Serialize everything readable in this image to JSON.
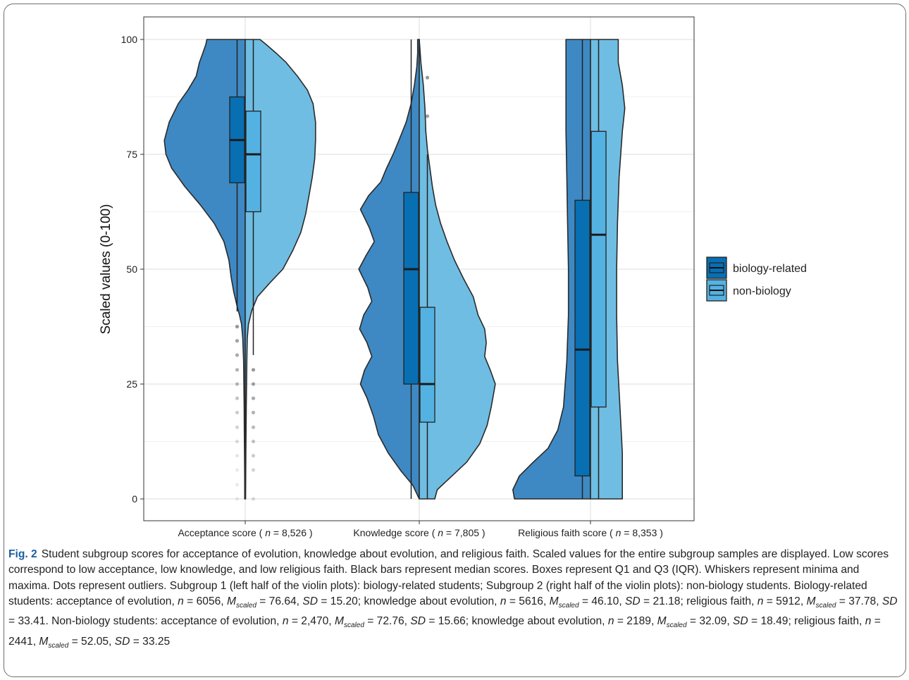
{
  "chart_data": {
    "type": "violin",
    "ylabel": "Scaled values (0-100)",
    "ylim": [
      0,
      100
    ],
    "yticks": [
      0,
      25,
      50,
      75,
      100
    ],
    "grid": true,
    "legend_position": "right",
    "colors": {
      "biology-related": "#3e89c3",
      "non-biology": "#6fbde3",
      "box_biology": "#086fb3",
      "box_non": "#54b2e2",
      "outline": "#2a2a2a",
      "grid": "#e6e6e6"
    },
    "categories": [
      {
        "label": "Acceptance score ( n = 8,526 )",
        "label_pre": "Acceptance score ( ",
        "label_n": "n",
        "label_post": " = 8,526 )"
      },
      {
        "label": "Knowledge score ( n = 7,805 )",
        "label_pre": "Knowledge score ( ",
        "label_n": "n",
        "label_post": " = 7,805 )"
      },
      {
        "label": "Religious faith score ( n = 8,353 )",
        "label_pre": "Religious faith score ( ",
        "label_n": "n",
        "label_post": " = 8,353 )"
      }
    ],
    "series": [
      {
        "name": "biology-related",
        "groups": [
          {
            "box": {
              "min": 40.8,
              "q1": 68.8,
              "median": 78.1,
              "q3": 87.5,
              "max": 100
            },
            "outliers": [
              37.5,
              34.4,
              31.3,
              28.1,
              25,
              21.9,
              18.8,
              15.6,
              12.5,
              9.4,
              6.3,
              3.1,
              0
            ],
            "density": [
              [
                0,
                0.006
              ],
              [
                3,
                0.006
              ],
              [
                6,
                0.007
              ],
              [
                10,
                0.009
              ],
              [
                15,
                0.011
              ],
              [
                20,
                0.013
              ],
              [
                25,
                0.016
              ],
              [
                30,
                0.02
              ],
              [
                35,
                0.03
              ],
              [
                38,
                0.045
              ],
              [
                40,
                0.07
              ],
              [
                42,
                0.1
              ],
              [
                45,
                0.14
              ],
              [
                48,
                0.17
              ],
              [
                52,
                0.2
              ],
              [
                56,
                0.26
              ],
              [
                60,
                0.38
              ],
              [
                64,
                0.55
              ],
              [
                68,
                0.74
              ],
              [
                72,
                0.9
              ],
              [
                75,
                0.97
              ],
              [
                78,
                0.99
              ],
              [
                82,
                0.93
              ],
              [
                86,
                0.82
              ],
              [
                89,
                0.7
              ],
              [
                92,
                0.6
              ],
              [
                95,
                0.56
              ],
              [
                97,
                0.52
              ],
              [
                99,
                0.48
              ],
              [
                100,
                0.47
              ]
            ]
          },
          {
            "box": {
              "min": 0,
              "q1": 25,
              "median": 50,
              "q3": 66.7,
              "max": 100
            },
            "outliers": [],
            "density": [
              [
                0,
                0.0
              ],
              [
                3,
                0.08
              ],
              [
                6,
                0.22
              ],
              [
                10,
                0.38
              ],
              [
                14,
                0.5
              ],
              [
                18,
                0.56
              ],
              [
                22,
                0.64
              ],
              [
                25,
                0.72
              ],
              [
                28,
                0.67
              ],
              [
                31,
                0.58
              ],
              [
                34,
                0.64
              ],
              [
                37,
                0.73
              ],
              [
                40,
                0.68
              ],
              [
                43,
                0.58
              ],
              [
                46,
                0.63
              ],
              [
                50,
                0.74
              ],
              [
                53,
                0.65
              ],
              [
                56,
                0.55
              ],
              [
                59,
                0.61
              ],
              [
                63,
                0.72
              ],
              [
                66,
                0.62
              ],
              [
                69,
                0.47
              ],
              [
                72,
                0.4
              ],
              [
                75,
                0.32
              ],
              [
                78,
                0.25
              ],
              [
                82,
                0.16
              ],
              [
                86,
                0.1
              ],
              [
                90,
                0.06
              ],
              [
                94,
                0.03
              ],
              [
                97,
                0.02
              ],
              [
                100,
                0.02
              ]
            ]
          },
          {
            "box": {
              "min": 0,
              "q1": 5,
              "median": 32.5,
              "q3": 65,
              "max": 100
            },
            "outliers": [],
            "density": [
              [
                0,
                0.93
              ],
              [
                2,
                0.95
              ],
              [
                5,
                0.87
              ],
              [
                8,
                0.7
              ],
              [
                11,
                0.52
              ],
              [
                15,
                0.4
              ],
              [
                20,
                0.33
              ],
              [
                30,
                0.29
              ],
              [
                40,
                0.27
              ],
              [
                50,
                0.27
              ],
              [
                60,
                0.28
              ],
              [
                70,
                0.29
              ],
              [
                80,
                0.3
              ],
              [
                90,
                0.3
              ],
              [
                96,
                0.3
              ],
              [
                100,
                0.3
              ]
            ]
          }
        ]
      },
      {
        "name": "non-biology",
        "groups": [
          {
            "box": {
              "min": 31.3,
              "q1": 62.5,
              "median": 75,
              "q3": 84.4,
              "max": 100
            },
            "outliers": [
              28.1,
              25,
              21.9,
              18.8,
              15.6,
              12.5,
              9.4,
              6.3,
              0
            ],
            "density": [
              [
                0,
                0.004
              ],
              [
                5,
                0.006
              ],
              [
                10,
                0.008
              ],
              [
                15,
                0.01
              ],
              [
                20,
                0.013
              ],
              [
                25,
                0.016
              ],
              [
                30,
                0.02
              ],
              [
                35,
                0.025
              ],
              [
                38,
                0.04
              ],
              [
                41,
                0.08
              ],
              [
                44,
                0.15
              ],
              [
                47,
                0.3
              ],
              [
                50,
                0.46
              ],
              [
                54,
                0.58
              ],
              [
                58,
                0.68
              ],
              [
                62,
                0.74
              ],
              [
                66,
                0.78
              ],
              [
                70,
                0.82
              ],
              [
                74,
                0.85
              ],
              [
                78,
                0.86
              ],
              [
                82,
                0.86
              ],
              [
                86,
                0.83
              ],
              [
                89,
                0.76
              ],
              [
                92,
                0.64
              ],
              [
                95,
                0.5
              ],
              [
                97,
                0.38
              ],
              [
                99,
                0.25
              ],
              [
                100,
                0.18
              ]
            ]
          },
          {
            "box": {
              "min": 0,
              "q1": 16.7,
              "median": 25,
              "q3": 41.7,
              "max": 75
            },
            "outliers": [
              91.7,
              83.3
            ],
            "density": [
              [
                0,
                0.19
              ],
              [
                2,
                0.22
              ],
              [
                5,
                0.4
              ],
              [
                8,
                0.58
              ],
              [
                12,
                0.74
              ],
              [
                16,
                0.83
              ],
              [
                20,
                0.88
              ],
              [
                23,
                0.91
              ],
              [
                25,
                0.93
              ],
              [
                28,
                0.87
              ],
              [
                31,
                0.8
              ],
              [
                34,
                0.82
              ],
              [
                37,
                0.8
              ],
              [
                40,
                0.72
              ],
              [
                44,
                0.66
              ],
              [
                48,
                0.54
              ],
              [
                52,
                0.43
              ],
              [
                56,
                0.34
              ],
              [
                60,
                0.26
              ],
              [
                64,
                0.2
              ],
              [
                68,
                0.16
              ],
              [
                72,
                0.13
              ],
              [
                76,
                0.1
              ],
              [
                80,
                0.08
              ],
              [
                85,
                0.07
              ],
              [
                90,
                0.05
              ],
              [
                95,
                0.02
              ],
              [
                100,
                0.0
              ]
            ]
          },
          {
            "box": {
              "min": 0,
              "q1": 20,
              "median": 57.5,
              "q3": 80,
              "max": 100
            },
            "outliers": [],
            "density": [
              [
                0,
                0.39
              ],
              [
                10,
                0.39
              ],
              [
                20,
                0.36
              ],
              [
                30,
                0.33
              ],
              [
                40,
                0.32
              ],
              [
                50,
                0.32
              ],
              [
                60,
                0.33
              ],
              [
                70,
                0.35
              ],
              [
                80,
                0.39
              ],
              [
                85,
                0.42
              ],
              [
                90,
                0.39
              ],
              [
                95,
                0.34
              ],
              [
                98,
                0.34
              ],
              [
                100,
                0.34
              ]
            ]
          }
        ]
      }
    ]
  },
  "caption": {
    "label": "Fig. 2",
    "text": "Student subgroup scores for acceptance of evolution, knowledge about evolution, and religious faith. Scaled values for the entire subgroup samples are displayed. Low scores correspond to low acceptance, low knowledge, and low religious faith. Black bars represent median scores. Boxes represent Q1 and Q3 (IQR). Whiskers represent minima and maxima. Dots represent outliers. Subgroup 1 (left half of the violin plots): biology-related students; Subgroup 2 (right half of the violin plots): non-biology students. Biology-related students: acceptance of evolution, n = 6056, M",
    "bio_stats_1": "scaled",
    "segments": [
      {
        "t": "Student subgroup scores for acceptance of evolution, knowledge about evolution, and religious faith. Scaled values for the entire subgroup samples are displayed. Low scores correspond to low acceptance, low knowledge, and low religious faith. Black bars represent median scores. Boxes represent Q1 and Q3 (IQR). Whiskers represent minima and maxima. Dots represent outliers. Subgroup 1 (left half of the violin plots): biology-related students; Subgroup 2 (right half of the violin plots): non-biology students. Biology-related students: acceptance of evolution, ",
        "s": "n"
      },
      {
        "t": "n",
        "s": "i"
      },
      {
        "t": " = 6056, ",
        "s": "n"
      },
      {
        "t": "M",
        "s": "i"
      },
      {
        "t": "scaled",
        "s": "sub"
      },
      {
        "t": " = 76.64, ",
        "s": "n"
      },
      {
        "t": "SD",
        "s": "i"
      },
      {
        "t": " = 15.20; knowledge about evolution, ",
        "s": "n"
      },
      {
        "t": "n",
        "s": "i"
      },
      {
        "t": " = 5616, ",
        "s": "n"
      },
      {
        "t": "M",
        "s": "i"
      },
      {
        "t": "scaled",
        "s": "sub"
      },
      {
        "t": " = 46.10, ",
        "s": "n"
      },
      {
        "t": "SD",
        "s": "i"
      },
      {
        "t": " = 21.18; religious faith, ",
        "s": "n"
      },
      {
        "t": "n",
        "s": "i"
      },
      {
        "t": " = 5912, ",
        "s": "n"
      },
      {
        "t": "M",
        "s": "i"
      },
      {
        "t": "scaled",
        "s": "sub"
      },
      {
        "t": " = 37.78, ",
        "s": "n"
      },
      {
        "t": "SD",
        "s": "i"
      },
      {
        "t": " = 33.41. Non-biology students: acceptance of evolution, ",
        "s": "n"
      },
      {
        "t": "n",
        "s": "i"
      },
      {
        "t": " = 2,470, ",
        "s": "n"
      },
      {
        "t": "M",
        "s": "i"
      },
      {
        "t": "scaled",
        "s": "sub"
      },
      {
        "t": " = 72.76, ",
        "s": "n"
      },
      {
        "t": "SD",
        "s": "i"
      },
      {
        "t": " = 15.66; knowledge about evolution, ",
        "s": "n"
      },
      {
        "t": "n",
        "s": "i"
      },
      {
        "t": " = 2189, ",
        "s": "n"
      },
      {
        "t": "M",
        "s": "i"
      },
      {
        "t": "scaled",
        "s": "sub"
      },
      {
        "t": " = 32.09, ",
        "s": "n"
      },
      {
        "t": "SD",
        "s": "i"
      },
      {
        "t": " = 18.49; religious faith, ",
        "s": "n"
      },
      {
        "t": "n",
        "s": "i"
      },
      {
        "t": " = 2441, ",
        "s": "n"
      },
      {
        "t": "M",
        "s": "i"
      },
      {
        "t": "scaled",
        "s": "sub"
      },
      {
        "t": " = 52.05, ",
        "s": "n"
      },
      {
        "t": "SD",
        "s": "i"
      },
      {
        "t": " = 33.25",
        "s": "n"
      }
    ]
  }
}
